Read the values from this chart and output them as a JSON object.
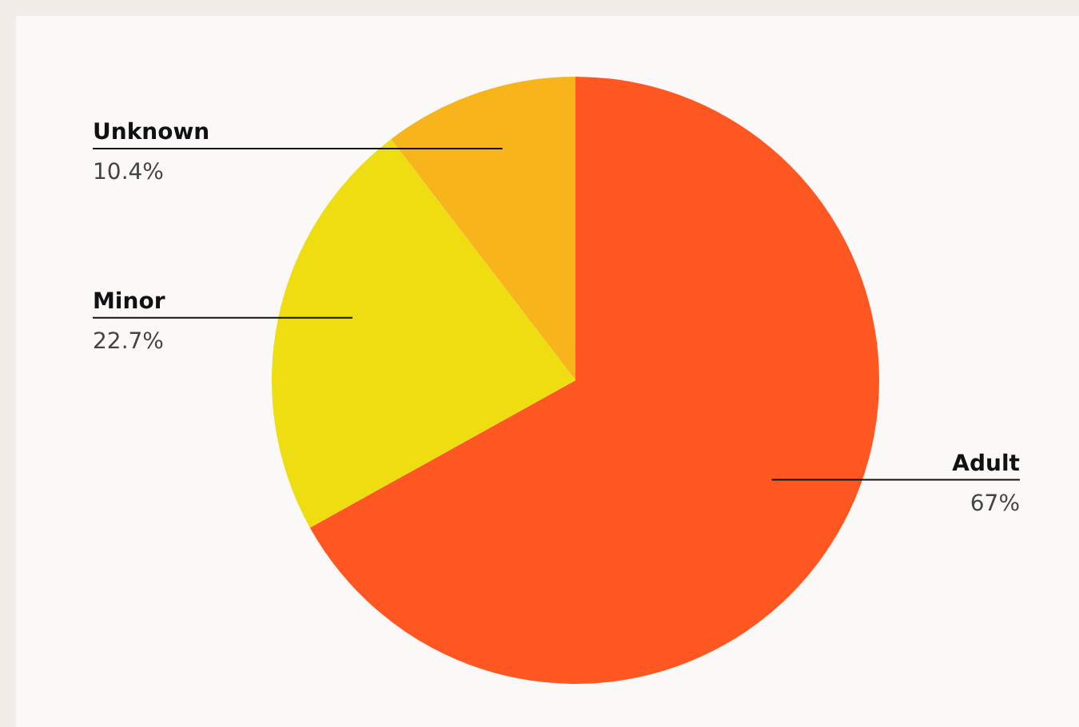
{
  "chart_data": {
    "type": "pie",
    "categories": [
      "Adult",
      "Minor",
      "Unknown"
    ],
    "values": [
      67,
      22.7,
      10.4
    ],
    "colors": [
      "#ff5722",
      "#eedd10",
      "#f7b51b"
    ],
    "value_labels": [
      "67%",
      "22.7%",
      "10.4%"
    ]
  }
}
